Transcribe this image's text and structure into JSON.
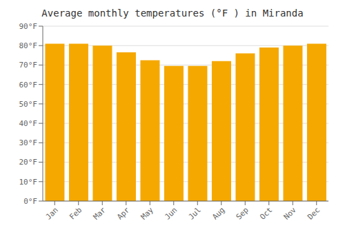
{
  "chart_data": {
    "type": "bar",
    "title": "Average monthly temperatures (°F ) in Miranda",
    "categories": [
      "Jan",
      "Feb",
      "Mar",
      "Apr",
      "May",
      "Jun",
      "Jul",
      "Aug",
      "Sep",
      "Oct",
      "Nov",
      "Dec"
    ],
    "values": [
      81,
      81,
      80,
      76.5,
      72.5,
      69.5,
      69.5,
      72,
      76,
      79,
      80,
      81
    ],
    "color": "#F5A800",
    "ylim": [
      0,
      90
    ],
    "yticks": [
      {
        "value": 0,
        "label": "0°F"
      },
      {
        "value": 10,
        "label": "10°F"
      },
      {
        "value": 20,
        "label": "20°F"
      },
      {
        "value": 30,
        "label": "30°F"
      },
      {
        "value": 40,
        "label": "40°F"
      },
      {
        "value": 50,
        "label": "50°F"
      },
      {
        "value": 60,
        "label": "60°F"
      },
      {
        "value": 70,
        "label": "70°F"
      },
      {
        "value": 80,
        "label": "80°F"
      },
      {
        "value": 90,
        "label": "90°F"
      }
    ],
    "grid": true
  }
}
